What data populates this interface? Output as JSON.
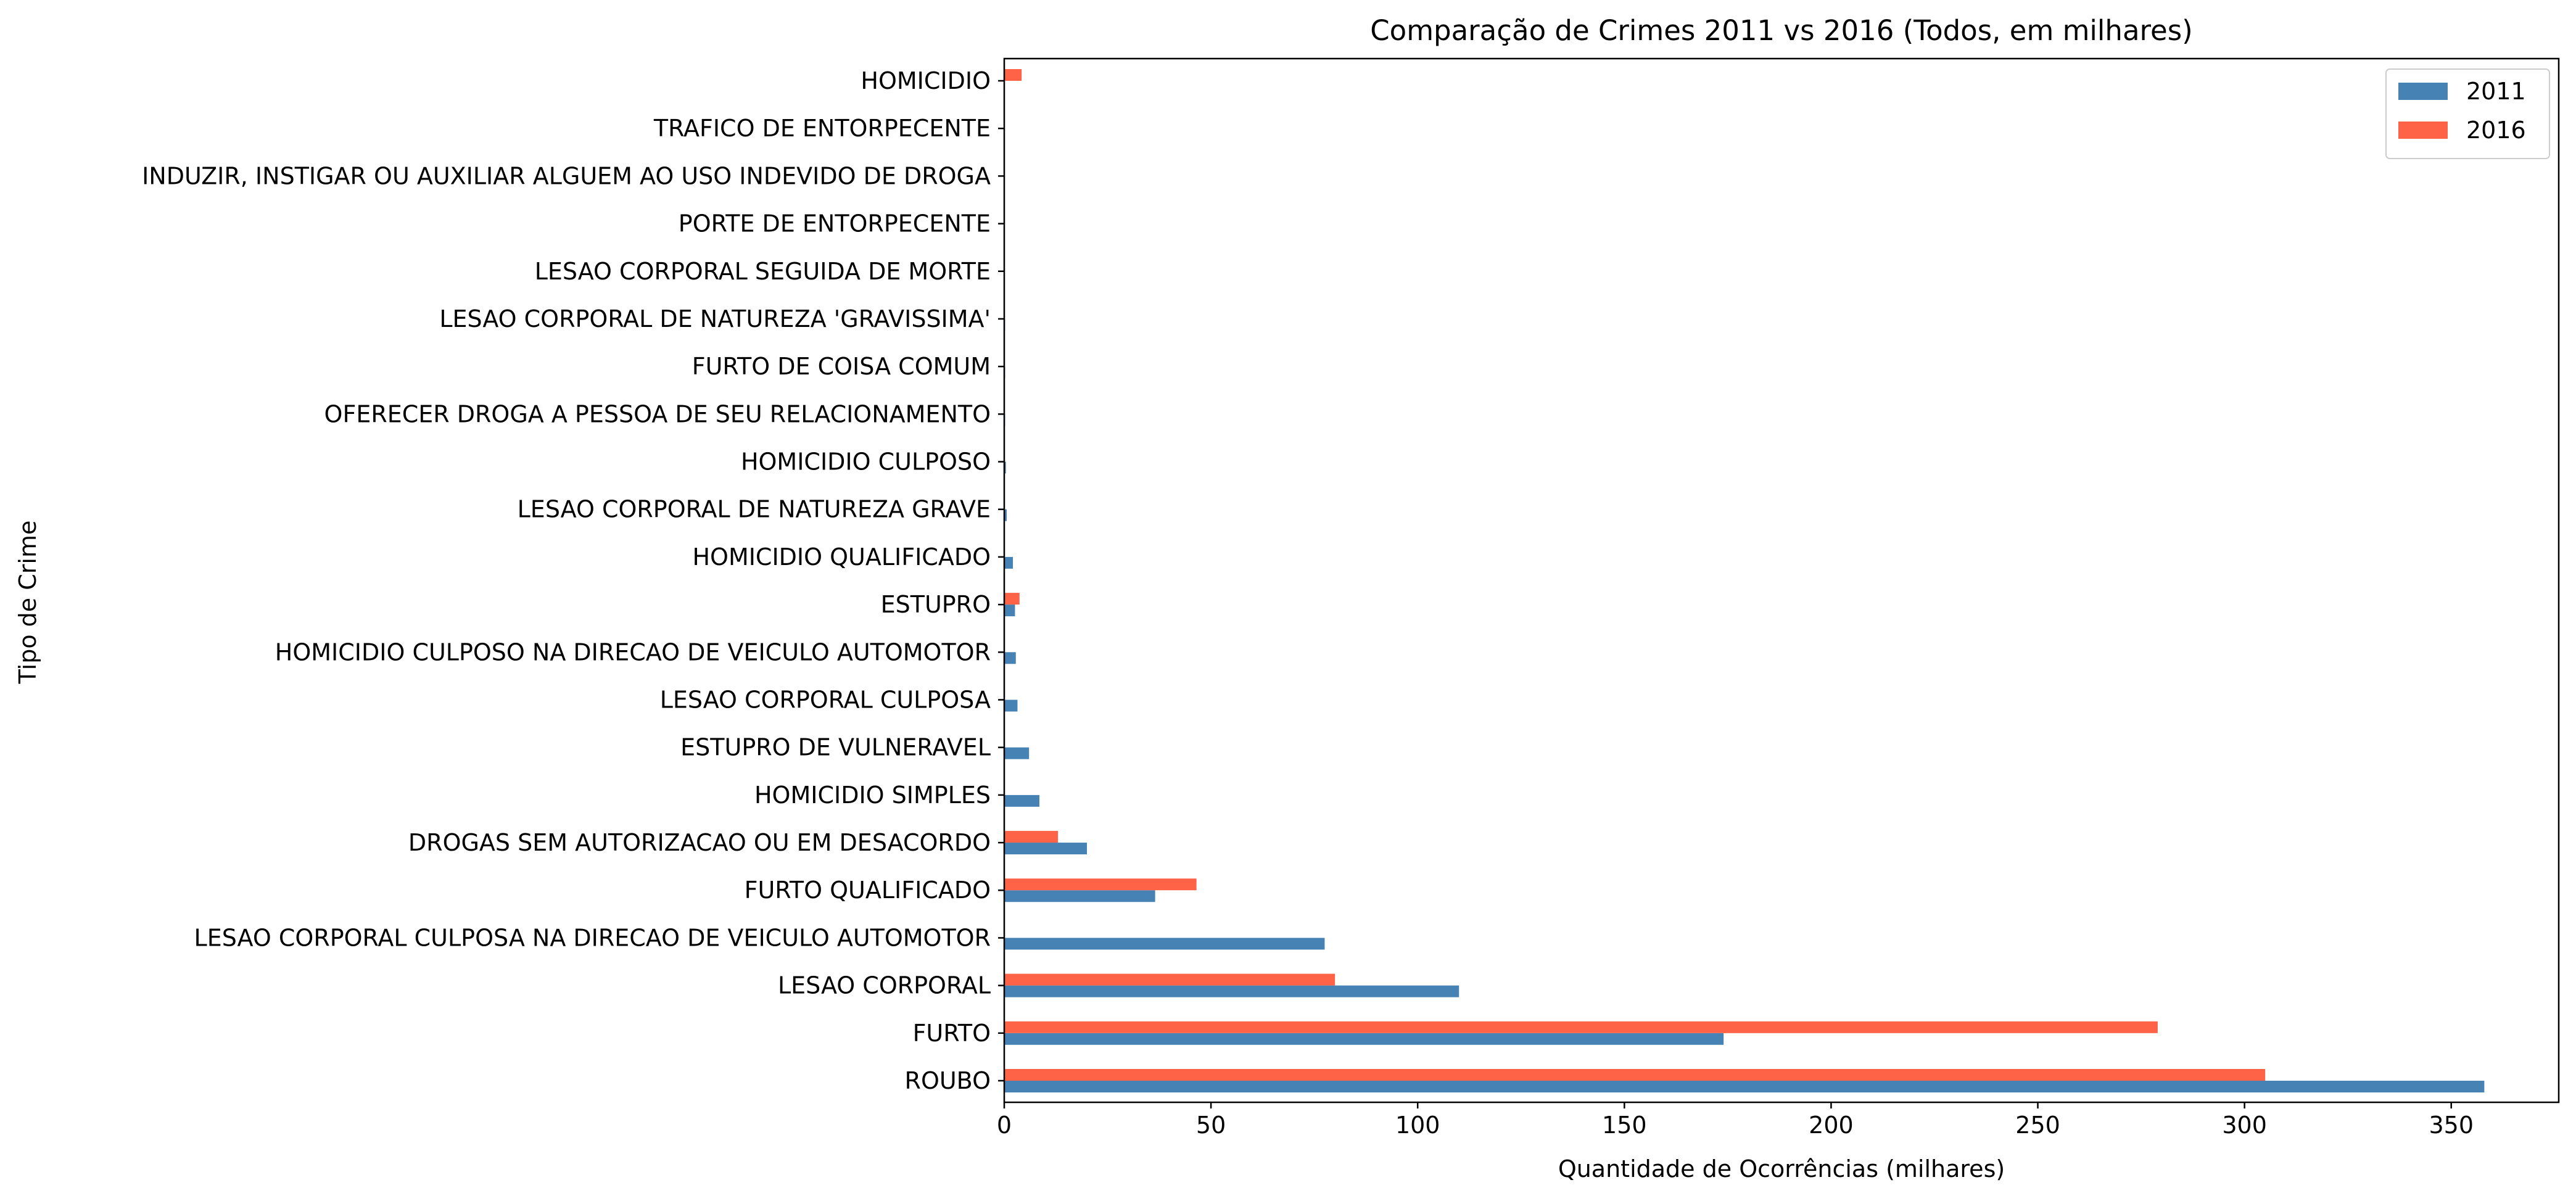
{
  "chart_data": {
    "type": "bar",
    "orientation": "horizontal",
    "title": "Comparação de Crimes 2011 vs 2016 (Todos, em milhares)",
    "xlabel": "Quantidade de Ocorrências (milhares)",
    "ylabel": "Tipo de Crime",
    "xlim": [
      0,
      376
    ],
    "xticks": [
      0,
      50,
      100,
      150,
      200,
      250,
      300,
      350
    ],
    "grid": false,
    "legend_position": "top-right",
    "categories": [
      "ROUBO",
      "FURTO",
      "LESAO CORPORAL",
      "LESAO CORPORAL CULPOSA NA DIRECAO DE VEICULO AUTOMOTOR",
      "FURTO QUALIFICADO",
      "DROGAS SEM AUTORIZACAO OU EM DESACORDO",
      "HOMICIDIO SIMPLES",
      "ESTUPRO DE VULNERAVEL",
      "LESAO CORPORAL CULPOSA",
      "HOMICIDIO CULPOSO NA DIRECAO DE VEICULO AUTOMOTOR",
      "ESTUPRO",
      "HOMICIDIO QUALIFICADO",
      "LESAO CORPORAL DE NATUREZA GRAVE",
      "HOMICIDIO CULPOSO",
      "OFERECER DROGA A PESSOA DE SEU RELACIONAMENTO",
      "FURTO DE COISA COMUM",
      "LESAO CORPORAL  DE NATUREZA 'GRAVISSIMA'",
      "LESAO CORPORAL SEGUIDA DE MORTE",
      "PORTE DE ENTORPECENTE",
      "INDUZIR, INSTIGAR OU AUXILIAR ALGUEM AO USO INDEVIDO DE DROGA",
      "TRAFICO DE ENTORPECENTE",
      "HOMICIDIO"
    ],
    "series": [
      {
        "name": "2011",
        "color": "#4682b4",
        "values": [
          358,
          174,
          110,
          77.5,
          36.5,
          20,
          8.5,
          6,
          3.2,
          2.8,
          2.6,
          2.1,
          0.6,
          0.4,
          0.2,
          0.2,
          0.2,
          0.1,
          0.1,
          0.1,
          0.1,
          0
        ]
      },
      {
        "name": "2016",
        "color": "#ff6347",
        "values": [
          305,
          279,
          80,
          0,
          46.5,
          13,
          0,
          0,
          0,
          0,
          3.7,
          0,
          0,
          0,
          0,
          0,
          0,
          0,
          0,
          0,
          0,
          4.2
        ]
      }
    ]
  }
}
